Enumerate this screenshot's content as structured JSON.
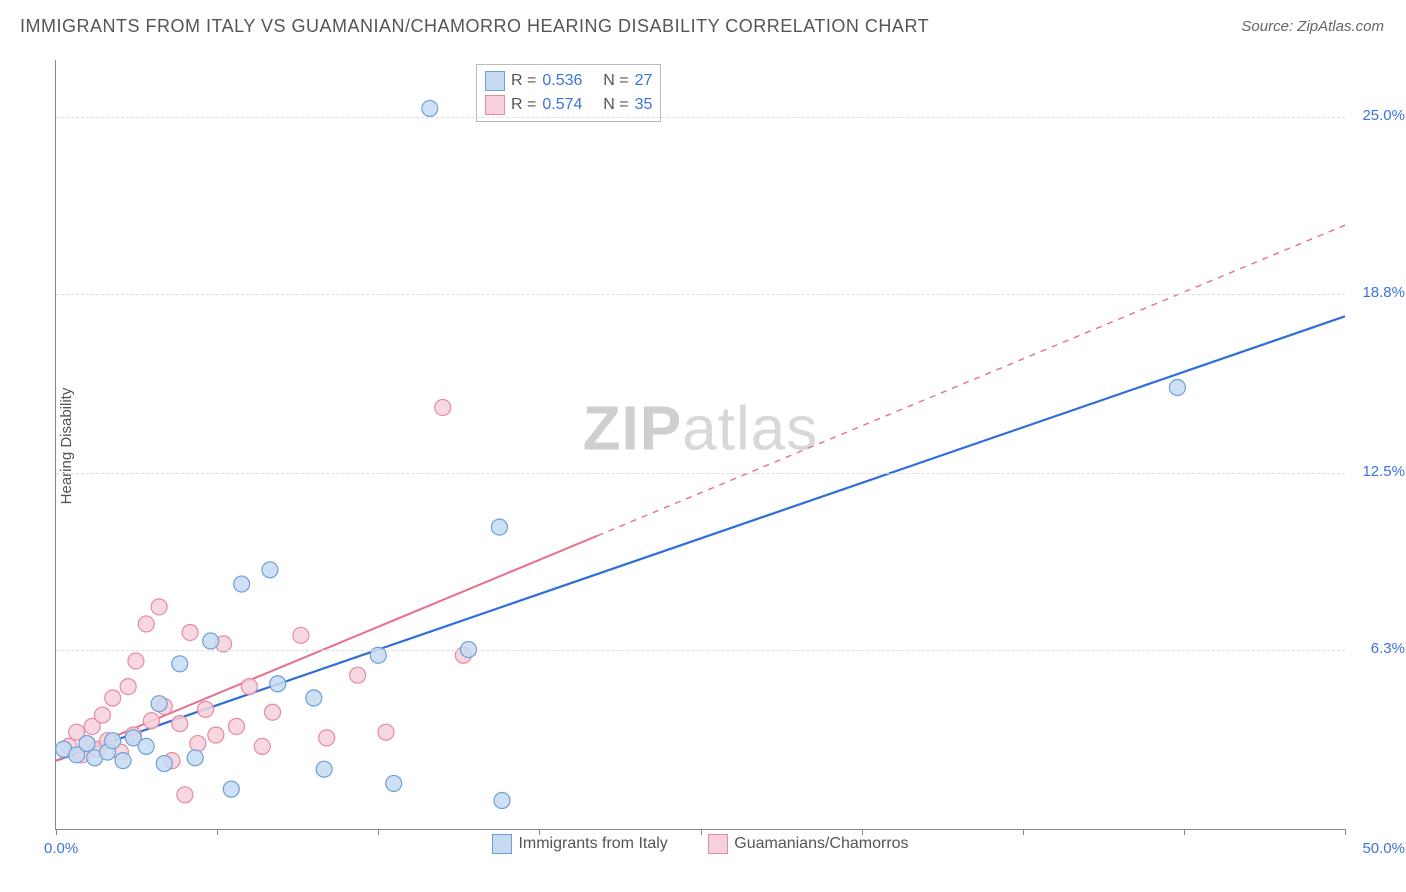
{
  "title": "IMMIGRANTS FROM ITALY VS GUAMANIAN/CHAMORRO HEARING DISABILITY CORRELATION CHART",
  "source_label": "Source:",
  "source_name": "ZipAtlas.com",
  "y_axis_label": "Hearing Disability",
  "watermark_a": "ZIP",
  "watermark_b": "atlas",
  "chart": {
    "type": "scatter-with-regression",
    "xlim": [
      0,
      50
    ],
    "ylim": [
      0,
      27
    ],
    "y_ticks": [
      6.3,
      12.5,
      18.8,
      25.0
    ],
    "y_tick_labels": [
      "6.3%",
      "12.5%",
      "18.8%",
      "25.0%"
    ],
    "x_ticks": [
      0,
      25,
      50
    ],
    "x_tick_labels": [
      "0.0%",
      "",
      "50.0%"
    ],
    "x_minor_ticks": [
      6.25,
      12.5,
      18.75,
      31.25,
      37.5,
      43.75
    ],
    "background_color": "#ffffff",
    "grid_color": "#dddddd",
    "axis_color": "#888888",
    "marker_radius": 8,
    "marker_stroke_width": 1.2,
    "series": [
      {
        "name": "Immigrants from Italy",
        "fill": "#c6dbf2",
        "stroke": "#6f9fd8",
        "r_value": "0.536",
        "n_value": "27",
        "regression": {
          "x1": 0,
          "y1": 2.4,
          "x2": 50,
          "y2": 18.0,
          "solid_until_x": 50,
          "color": "#2e6ed9",
          "width": 2.2
        },
        "points": [
          [
            0.3,
            2.8
          ],
          [
            0.8,
            2.6
          ],
          [
            1.2,
            3.0
          ],
          [
            1.5,
            2.5
          ],
          [
            2.0,
            2.7
          ],
          [
            2.2,
            3.1
          ],
          [
            2.6,
            2.4
          ],
          [
            3.0,
            3.2
          ],
          [
            3.5,
            2.9
          ],
          [
            4.0,
            4.4
          ],
          [
            4.2,
            2.3
          ],
          [
            4.8,
            5.8
          ],
          [
            5.4,
            2.5
          ],
          [
            6.0,
            6.6
          ],
          [
            6.8,
            1.4
          ],
          [
            7.2,
            8.6
          ],
          [
            8.3,
            9.1
          ],
          [
            8.6,
            5.1
          ],
          [
            10.0,
            4.6
          ],
          [
            10.4,
            2.1
          ],
          [
            12.5,
            6.1
          ],
          [
            13.1,
            1.6
          ],
          [
            14.5,
            25.3
          ],
          [
            16.0,
            6.3
          ],
          [
            17.2,
            10.6
          ],
          [
            17.3,
            1.0
          ],
          [
            43.5,
            15.5
          ]
        ]
      },
      {
        "name": "Guamanians/Chamorros",
        "fill": "#f6d1db",
        "stroke": "#e68aa1",
        "r_value": "0.574",
        "n_value": "35",
        "regression": {
          "x1": 0,
          "y1": 2.4,
          "x2": 50,
          "y2": 21.2,
          "solid_until_x": 21,
          "color": "#e76f8e",
          "width": 2.0
        },
        "points": [
          [
            0.5,
            2.9
          ],
          [
            0.8,
            3.4
          ],
          [
            1.0,
            2.6
          ],
          [
            1.2,
            3.0
          ],
          [
            1.4,
            3.6
          ],
          [
            1.6,
            2.8
          ],
          [
            1.8,
            4.0
          ],
          [
            2.0,
            3.1
          ],
          [
            2.2,
            4.6
          ],
          [
            2.5,
            2.7
          ],
          [
            2.8,
            5.0
          ],
          [
            3.0,
            3.3
          ],
          [
            3.1,
            5.9
          ],
          [
            3.5,
            7.2
          ],
          [
            3.7,
            3.8
          ],
          [
            4.0,
            7.8
          ],
          [
            4.2,
            4.3
          ],
          [
            4.5,
            2.4
          ],
          [
            4.8,
            3.7
          ],
          [
            5.0,
            1.2
          ],
          [
            5.2,
            6.9
          ],
          [
            5.5,
            3.0
          ],
          [
            5.8,
            4.2
          ],
          [
            6.2,
            3.3
          ],
          [
            6.5,
            6.5
          ],
          [
            7.0,
            3.6
          ],
          [
            7.5,
            5.0
          ],
          [
            8.0,
            2.9
          ],
          [
            8.4,
            4.1
          ],
          [
            9.5,
            6.8
          ],
          [
            10.5,
            3.2
          ],
          [
            11.7,
            5.4
          ],
          [
            12.8,
            3.4
          ],
          [
            15.0,
            14.8
          ],
          [
            15.8,
            6.1
          ]
        ]
      }
    ]
  },
  "legend_top": {
    "r_label": "R =",
    "n_label": "N ="
  },
  "legend_bottom": {
    "series1": "Immigrants from Italy",
    "series2": "Guamanians/Chamorros"
  }
}
